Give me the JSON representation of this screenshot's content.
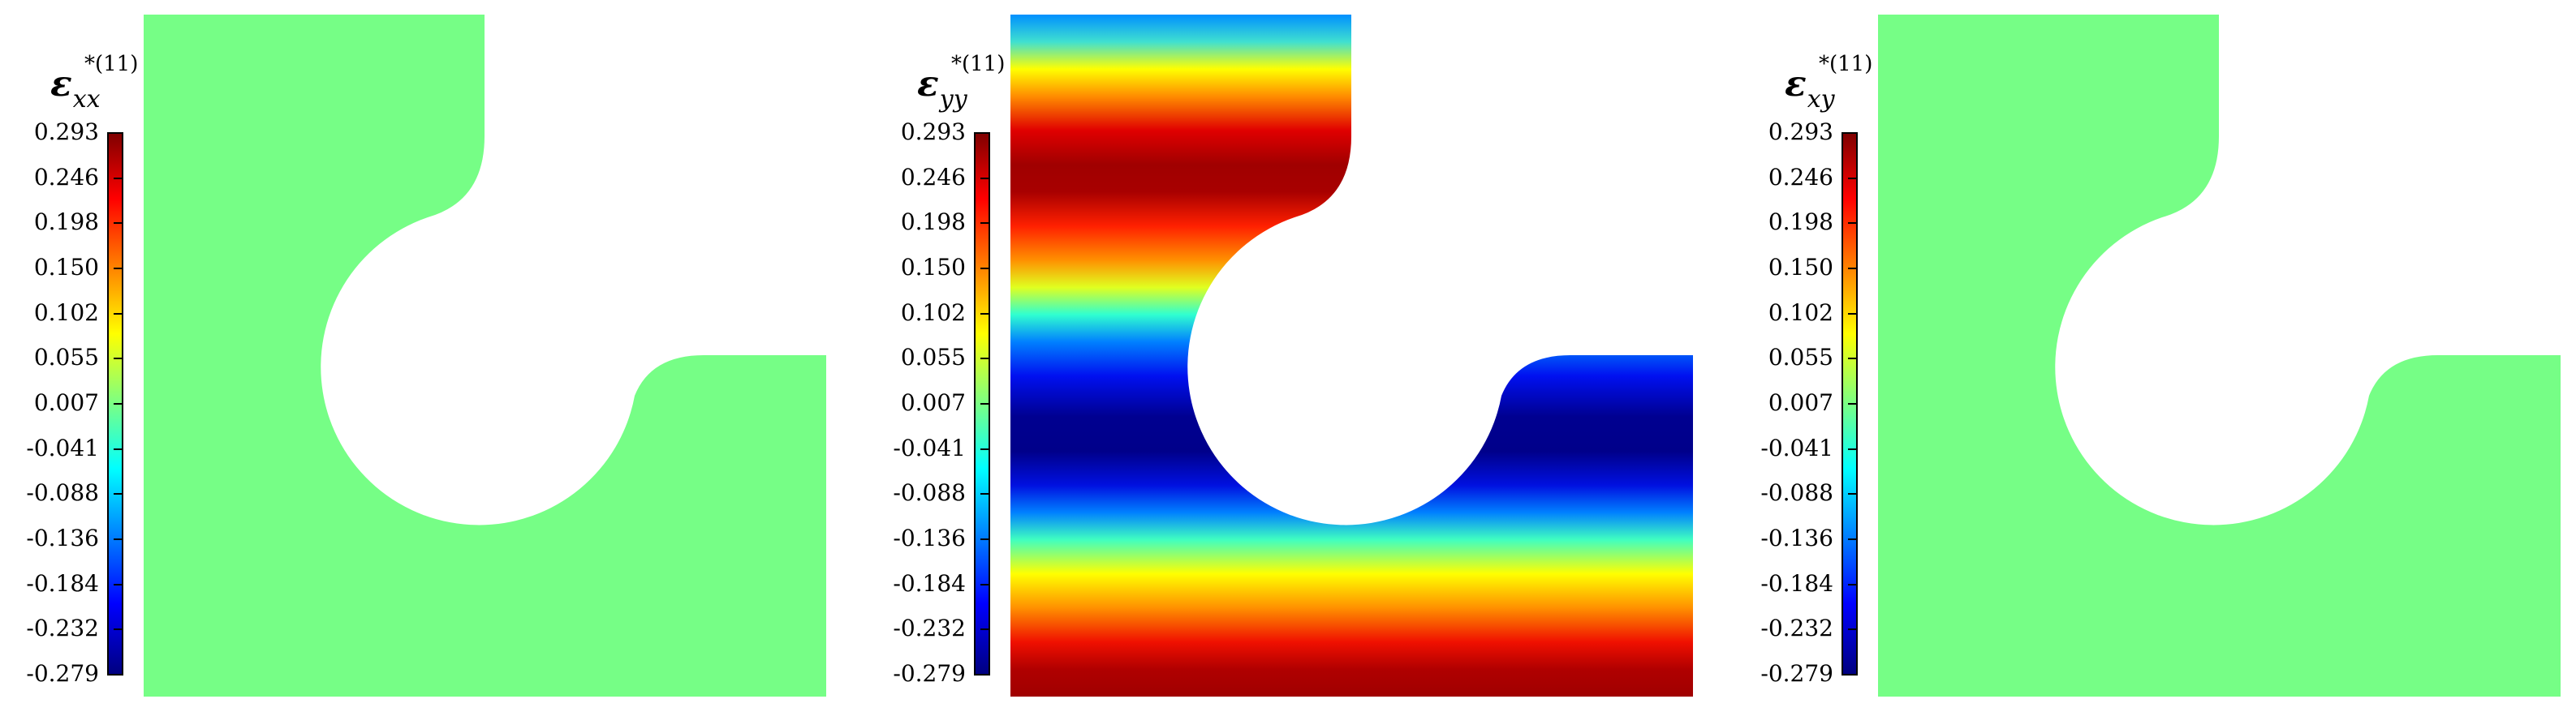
{
  "panels": [
    {
      "symbol": "ε",
      "subscript": "xx",
      "superscript": "*(11)",
      "field": "uniform"
    },
    {
      "symbol": "ε",
      "subscript": "yy",
      "superscript": "*(11)",
      "field": "banded"
    },
    {
      "symbol": "ε",
      "subscript": "xy",
      "superscript": "*(11)",
      "field": "uniform"
    }
  ],
  "colorbar": {
    "ticks": [
      "0.293",
      "0.246",
      "0.198",
      "0.150",
      "0.102",
      "0.055",
      "0.007",
      "-0.041",
      "-0.088",
      "-0.136",
      "-0.184",
      "-0.232",
      "-0.279"
    ],
    "colormap": "jet",
    "max": 0.293,
    "min": -0.279
  },
  "colors": {
    "uniform_fill": "#76FE86",
    "jet_dark_red": "#800000",
    "jet_red": "#FF0000",
    "jet_yellow": "#FFFF00",
    "jet_cyan": "#00FFFF",
    "jet_blue": "#0000FF",
    "jet_dark_blue": "#000080"
  }
}
